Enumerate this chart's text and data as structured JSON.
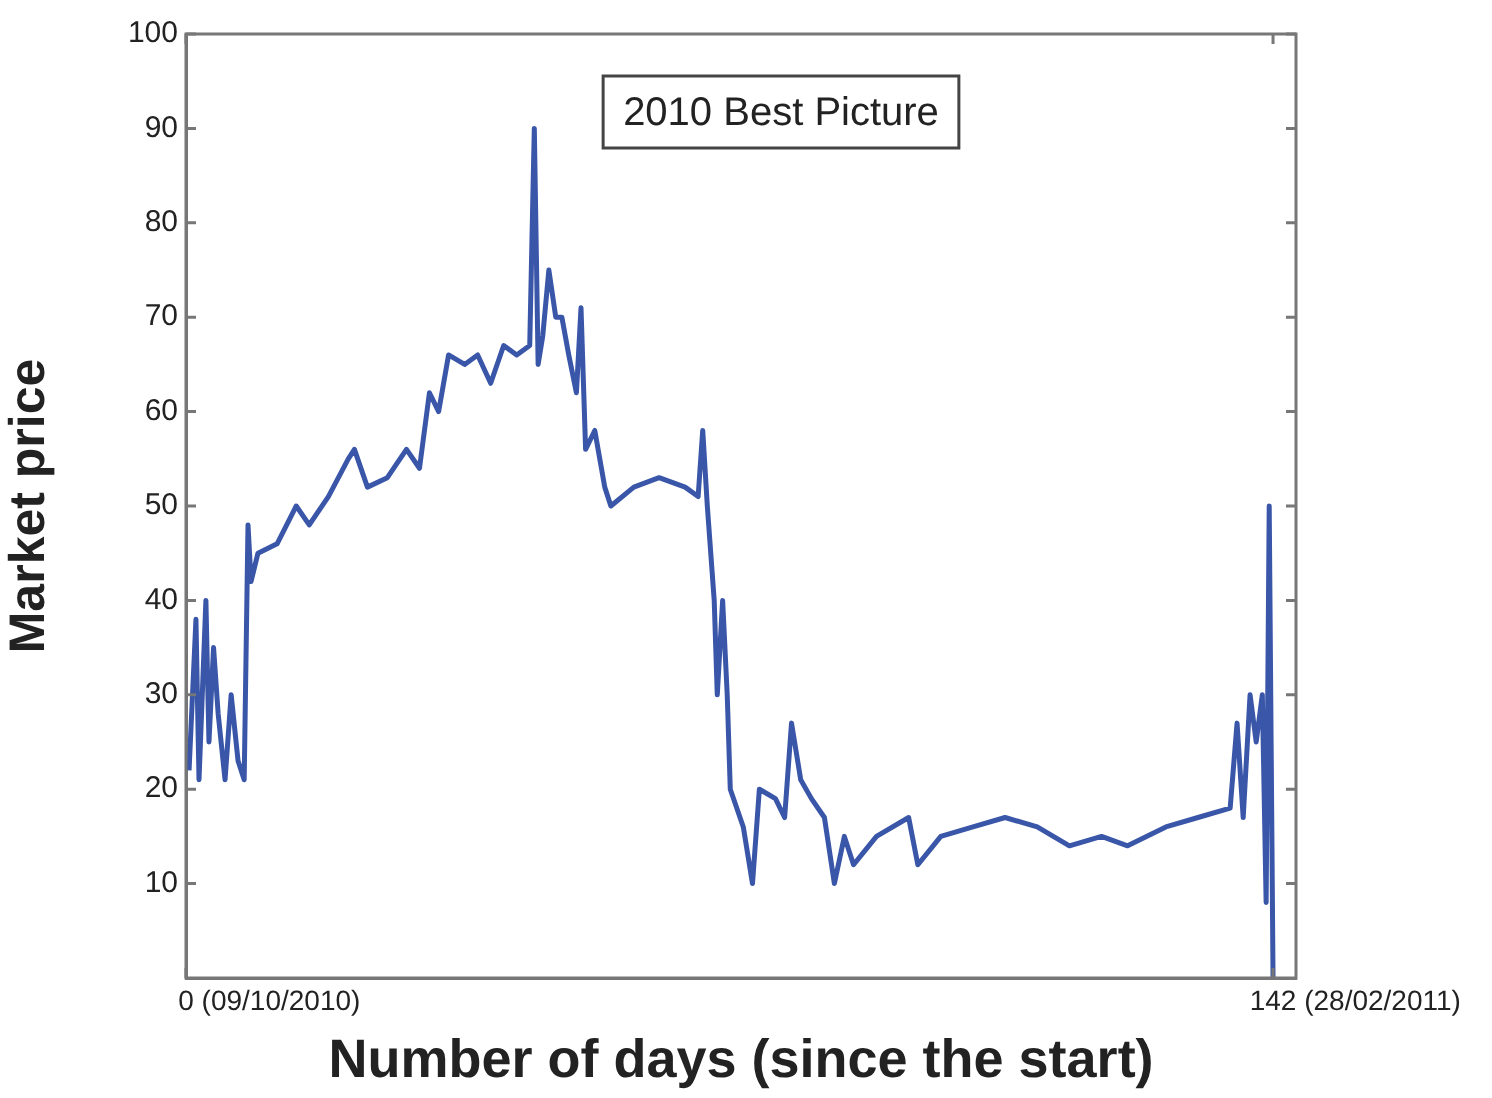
{
  "chart_data": {
    "type": "line",
    "title": "2010 Best Picture",
    "xlabel": "Number of days (since the start)",
    "ylabel": "Market price",
    "x": [
      0.4,
      1.3,
      1.7,
      2.6,
      3.0,
      3.6,
      4.2,
      5.1,
      5.9,
      6.8,
      7.6,
      8.1,
      8.5,
      9.4,
      11.9,
      14.4,
      16.1,
      18.6,
      21.2,
      22,
      23.7,
      26.3,
      28.8,
      30.5,
      31.8,
      33,
      34.3,
      36.4,
      38.1,
      39.8,
      41.5,
      43.2,
      44.9,
      45.5,
      46,
      46.6,
      47.4,
      48.3,
      49.1,
      50,
      51,
      51.6,
      52.2,
      53.4,
      54.7,
      55.5,
      58.5,
      61.8,
      65.2,
      66.9,
      67.5,
      68.1,
      69,
      69.4,
      70.1,
      70.7,
      71.1,
      72.8,
      74,
      74.9,
      77,
      78.2,
      79.1,
      80.3,
      81.7,
      83.4,
      84.7,
      86,
      87.2,
      90.2,
      94.4,
      95.6,
      98.6,
      102.8,
      107,
      111.2,
      115.4,
      119.6,
      123,
      128,
      132.2,
      136.4,
      137.3,
      138.1,
      139,
      139.8,
      140.6,
      141.1,
      141.5,
      142
    ],
    "series": [
      {
        "color": "#3a56a8",
        "values": [
          22,
          38,
          21,
          40,
          25,
          35,
          28,
          21,
          30,
          23,
          21,
          48,
          42,
          45,
          46,
          50,
          48,
          51,
          55,
          56,
          52,
          53,
          56,
          54,
          62,
          60,
          66,
          65,
          66,
          63,
          67,
          66,
          67,
          90,
          65,
          68,
          75,
          70,
          70,
          66,
          62,
          71,
          56,
          58,
          52,
          50,
          52,
          53,
          52,
          51,
          58,
          50,
          40,
          30,
          40,
          30,
          20,
          16,
          10,
          20,
          19,
          17,
          27,
          21,
          19,
          17,
          10,
          15,
          12,
          15,
          17,
          12,
          15,
          16,
          17,
          16,
          14,
          15,
          14,
          16,
          17,
          18,
          27,
          17,
          30,
          25,
          30,
          8,
          50,
          0
        ]
      }
    ],
    "xlim": [
      0,
      145
    ],
    "ylim": [
      0,
      100
    ],
    "xticks": [
      0,
      142
    ],
    "annotations": [
      "(09/10/2010)",
      "(28/02/2011)"
    ],
    "yticks": [
      10,
      20,
      30,
      40,
      50,
      60,
      70,
      80,
      90,
      100
    ],
    "grid": false,
    "legend": false,
    "marker": "none",
    "line_style": "solid"
  }
}
